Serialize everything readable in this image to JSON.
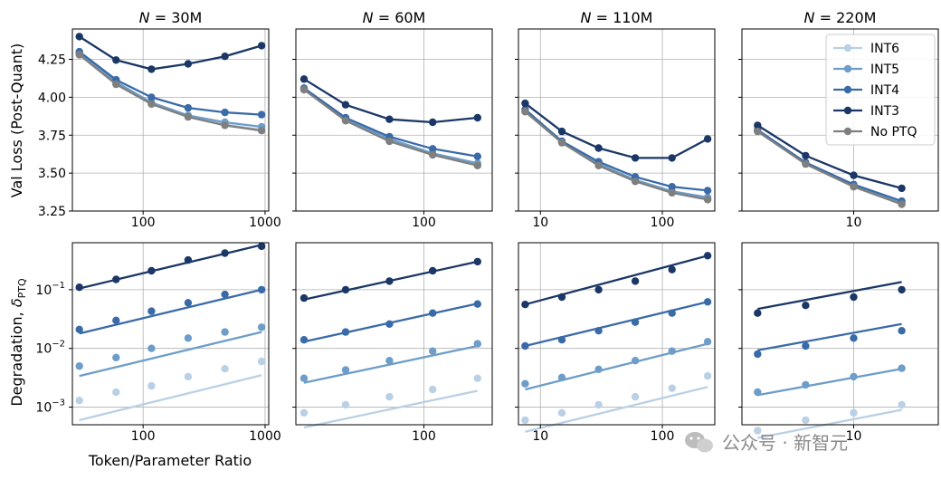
{
  "colors": {
    "INT6": "#b9d0e5",
    "INT5": "#6d9dc8",
    "INT4": "#3a6ba8",
    "INT3": "#1b3766",
    "NoPTQ": "#7f7f7f"
  },
  "chart_data": {
    "type": "line",
    "x_label": "Token/Parameter Ratio",
    "row_labels": {
      "top": "Val Loss (Post-Quant)",
      "bottom_main": "Degradation, ",
      "bottom_sym": "δ",
      "bottom_sub": "PTQ"
    },
    "legend": {
      "placement": "top-right of panel 4",
      "items": [
        {
          "key": "INT6",
          "label": "INT6"
        },
        {
          "key": "INT5",
          "label": "INT5"
        },
        {
          "key": "INT4",
          "label": "INT4"
        },
        {
          "key": "INT3",
          "label": "INT3"
        },
        {
          "key": "NoPTQ",
          "label": "No PTQ"
        }
      ]
    },
    "top_ylim": [
      3.25,
      4.45
    ],
    "top_yticks": [
      "3.25",
      "3.50",
      "3.75",
      "4.00",
      "4.25"
    ],
    "bottom_yticks_exp": [
      "-3",
      "-2",
      "-1"
    ],
    "bottom_ylim_log10": [
      -3.3,
      -0.2
    ],
    "grid": true,
    "panels": [
      {
        "title_var": "N",
        "title_val": " = 30M",
        "xlim_log10": [
          1.42,
          3.03
        ],
        "xticks": [
          {
            "v": 100,
            "label": "100"
          },
          {
            "v": 1000,
            "label": "1000"
          }
        ],
        "show_y": true,
        "x": [
          30,
          60,
          117,
          234,
          469,
          937
        ],
        "loss": {
          "INT3": [
            4.4,
            4.245,
            4.185,
            4.22,
            4.27,
            4.34
          ],
          "INT4": [
            4.3,
            4.115,
            4.0,
            3.93,
            3.9,
            3.885
          ],
          "INT5": [
            4.29,
            4.1,
            3.965,
            3.88,
            3.835,
            3.805
          ],
          "INT6": [
            4.285,
            4.09,
            3.96,
            3.875,
            3.82,
            3.785
          ],
          "NoPTQ": [
            4.28,
            4.085,
            3.955,
            3.87,
            3.815,
            3.78
          ]
        },
        "deg": {
          "INT3": [
            0.11,
            0.15,
            0.21,
            0.32,
            0.42,
            0.55
          ],
          "INT4": [
            0.021,
            0.03,
            0.043,
            0.06,
            0.083,
            0.1
          ],
          "INT5": [
            0.005,
            0.007,
            0.01,
            0.015,
            0.019,
            0.023
          ],
          "INT6": [
            0.0013,
            0.0018,
            0.0023,
            0.0033,
            0.0045,
            0.006
          ]
        },
        "fit": {
          "INT3": [
            0.105,
            0.58
          ],
          "INT4": [
            0.018,
            0.1
          ],
          "INT5": [
            0.0034,
            0.019
          ],
          "INT6": [
            0.0006,
            0.0035
          ]
        }
      },
      {
        "title_var": "N",
        "title_val": " = 60M",
        "xlim_log10": [
          1.12,
          2.47
        ],
        "xticks": [
          {
            "v": 100,
            "label": "100"
          }
        ],
        "show_y": false,
        "x": [
          15,
          29,
          58,
          115,
          234
        ],
        "loss": {
          "INT3": [
            4.12,
            3.95,
            3.855,
            3.835,
            3.865
          ],
          "INT4": [
            4.06,
            3.865,
            3.74,
            3.66,
            3.61
          ],
          "INT5": [
            4.055,
            3.855,
            3.725,
            3.63,
            3.565
          ],
          "INT6": [
            4.05,
            3.85,
            3.715,
            3.62,
            3.555
          ],
          "NoPTQ": [
            4.05,
            3.845,
            3.71,
            3.62,
            3.55
          ]
        },
        "deg": {
          "INT3": [
            0.072,
            0.1,
            0.14,
            0.21,
            0.3
          ],
          "INT4": [
            0.014,
            0.019,
            0.026,
            0.04,
            0.057
          ],
          "INT5": [
            0.0031,
            0.0043,
            0.0062,
            0.009,
            0.012
          ],
          "INT6": [
            0.0008,
            0.0011,
            0.0015,
            0.002,
            0.0031
          ]
        },
        "fit": {
          "INT3": [
            0.068,
            0.3
          ],
          "INT4": [
            0.013,
            0.058
          ],
          "INT5": [
            0.0026,
            0.011
          ],
          "INT6": [
            0.00045,
            0.0019
          ]
        }
      },
      {
        "title_var": "N",
        "title_val": " = 110M",
        "xlim_log10": [
          0.82,
          2.43
        ],
        "xticks": [
          {
            "v": 10,
            "label": "10"
          },
          {
            "v": 100,
            "label": "100"
          }
        ],
        "show_y": false,
        "x": [
          7.5,
          15,
          30,
          60,
          120,
          235
        ],
        "loss": {
          "INT3": [
            3.96,
            3.775,
            3.665,
            3.6,
            3.6,
            3.725
          ],
          "INT4": [
            3.92,
            3.71,
            3.575,
            3.475,
            3.41,
            3.385
          ],
          "INT5": [
            3.91,
            3.705,
            3.56,
            3.455,
            3.38,
            3.34
          ],
          "INT6": [
            3.905,
            3.7,
            3.555,
            3.45,
            3.375,
            3.33
          ],
          "NoPTQ": [
            3.905,
            3.7,
            3.55,
            3.445,
            3.37,
            3.325
          ]
        },
        "deg": {
          "INT3": [
            0.056,
            0.075,
            0.1,
            0.14,
            0.22,
            0.38
          ],
          "INT4": [
            0.011,
            0.014,
            0.02,
            0.028,
            0.04,
            0.062
          ],
          "INT5": [
            0.0025,
            0.0032,
            0.0044,
            0.0062,
            0.009,
            0.013
          ],
          "INT6": [
            0.0006,
            0.0008,
            0.0011,
            0.0015,
            0.0021,
            0.0034
          ]
        },
        "fit": {
          "INT3": [
            0.056,
            0.38
          ],
          "INT4": [
            0.011,
            0.062
          ],
          "INT5": [
            0.002,
            0.012
          ],
          "INT6": [
            0.00038,
            0.0022
          ]
        }
      },
      {
        "title_var": "N",
        "title_val": " = 220M",
        "xlim_log10": [
          0.3,
          1.53
        ],
        "xticks": [
          {
            "v": 10,
            "label": "10"
          }
        ],
        "show_y": false,
        "x": [
          2.5,
          5,
          10,
          20
        ],
        "loss": {
          "INT3": [
            3.815,
            3.615,
            3.485,
            3.4
          ],
          "INT4": [
            3.785,
            3.57,
            3.425,
            3.315
          ],
          "INT5": [
            3.78,
            3.565,
            3.415,
            3.3
          ],
          "INT6": [
            3.775,
            3.56,
            3.41,
            3.295
          ],
          "NoPTQ": [
            3.775,
            3.56,
            3.41,
            3.295
          ]
        },
        "deg": {
          "INT3": [
            0.04,
            0.054,
            0.075,
            0.1
          ],
          "INT4": [
            0.008,
            0.011,
            0.015,
            0.02
          ],
          "INT5": [
            0.0018,
            0.0024,
            0.0033,
            0.0046
          ],
          "INT6": [
            0.0004,
            0.0006,
            0.0008,
            0.0011
          ]
        },
        "fit": {
          "INT3": [
            0.047,
            0.135
          ],
          "INT4": [
            0.0093,
            0.026
          ],
          "INT5": [
            0.0016,
            0.0045
          ],
          "INT6": [
            0.0003,
            0.0009
          ]
        }
      }
    ]
  },
  "watermark": {
    "text": "公众号 · 新智元",
    "icon": "wechat-icon"
  }
}
